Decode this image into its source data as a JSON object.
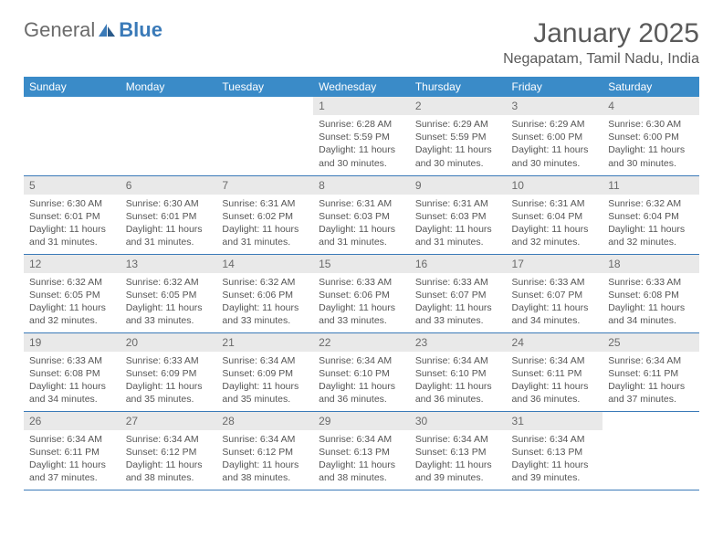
{
  "logo": {
    "general": "General",
    "blue": "Blue"
  },
  "title": "January 2025",
  "location": "Negapatam, Tamil Nadu, India",
  "colors": {
    "header_bg": "#3a8bc8",
    "border": "#3a7ab8",
    "daynum_bg": "#e9e9e9",
    "text": "#555555"
  },
  "day_names": [
    "Sunday",
    "Monday",
    "Tuesday",
    "Wednesday",
    "Thursday",
    "Friday",
    "Saturday"
  ],
  "weeks": [
    [
      {
        "n": "",
        "sr": "",
        "ss": "",
        "dl": ""
      },
      {
        "n": "",
        "sr": "",
        "ss": "",
        "dl": ""
      },
      {
        "n": "",
        "sr": "",
        "ss": "",
        "dl": ""
      },
      {
        "n": "1",
        "sr": "Sunrise: 6:28 AM",
        "ss": "Sunset: 5:59 PM",
        "dl": "Daylight: 11 hours and 30 minutes."
      },
      {
        "n": "2",
        "sr": "Sunrise: 6:29 AM",
        "ss": "Sunset: 5:59 PM",
        "dl": "Daylight: 11 hours and 30 minutes."
      },
      {
        "n": "3",
        "sr": "Sunrise: 6:29 AM",
        "ss": "Sunset: 6:00 PM",
        "dl": "Daylight: 11 hours and 30 minutes."
      },
      {
        "n": "4",
        "sr": "Sunrise: 6:30 AM",
        "ss": "Sunset: 6:00 PM",
        "dl": "Daylight: 11 hours and 30 minutes."
      }
    ],
    [
      {
        "n": "5",
        "sr": "Sunrise: 6:30 AM",
        "ss": "Sunset: 6:01 PM",
        "dl": "Daylight: 11 hours and 31 minutes."
      },
      {
        "n": "6",
        "sr": "Sunrise: 6:30 AM",
        "ss": "Sunset: 6:01 PM",
        "dl": "Daylight: 11 hours and 31 minutes."
      },
      {
        "n": "7",
        "sr": "Sunrise: 6:31 AM",
        "ss": "Sunset: 6:02 PM",
        "dl": "Daylight: 11 hours and 31 minutes."
      },
      {
        "n": "8",
        "sr": "Sunrise: 6:31 AM",
        "ss": "Sunset: 6:03 PM",
        "dl": "Daylight: 11 hours and 31 minutes."
      },
      {
        "n": "9",
        "sr": "Sunrise: 6:31 AM",
        "ss": "Sunset: 6:03 PM",
        "dl": "Daylight: 11 hours and 31 minutes."
      },
      {
        "n": "10",
        "sr": "Sunrise: 6:31 AM",
        "ss": "Sunset: 6:04 PM",
        "dl": "Daylight: 11 hours and 32 minutes."
      },
      {
        "n": "11",
        "sr": "Sunrise: 6:32 AM",
        "ss": "Sunset: 6:04 PM",
        "dl": "Daylight: 11 hours and 32 minutes."
      }
    ],
    [
      {
        "n": "12",
        "sr": "Sunrise: 6:32 AM",
        "ss": "Sunset: 6:05 PM",
        "dl": "Daylight: 11 hours and 32 minutes."
      },
      {
        "n": "13",
        "sr": "Sunrise: 6:32 AM",
        "ss": "Sunset: 6:05 PM",
        "dl": "Daylight: 11 hours and 33 minutes."
      },
      {
        "n": "14",
        "sr": "Sunrise: 6:32 AM",
        "ss": "Sunset: 6:06 PM",
        "dl": "Daylight: 11 hours and 33 minutes."
      },
      {
        "n": "15",
        "sr": "Sunrise: 6:33 AM",
        "ss": "Sunset: 6:06 PM",
        "dl": "Daylight: 11 hours and 33 minutes."
      },
      {
        "n": "16",
        "sr": "Sunrise: 6:33 AM",
        "ss": "Sunset: 6:07 PM",
        "dl": "Daylight: 11 hours and 33 minutes."
      },
      {
        "n": "17",
        "sr": "Sunrise: 6:33 AM",
        "ss": "Sunset: 6:07 PM",
        "dl": "Daylight: 11 hours and 34 minutes."
      },
      {
        "n": "18",
        "sr": "Sunrise: 6:33 AM",
        "ss": "Sunset: 6:08 PM",
        "dl": "Daylight: 11 hours and 34 minutes."
      }
    ],
    [
      {
        "n": "19",
        "sr": "Sunrise: 6:33 AM",
        "ss": "Sunset: 6:08 PM",
        "dl": "Daylight: 11 hours and 34 minutes."
      },
      {
        "n": "20",
        "sr": "Sunrise: 6:33 AM",
        "ss": "Sunset: 6:09 PM",
        "dl": "Daylight: 11 hours and 35 minutes."
      },
      {
        "n": "21",
        "sr": "Sunrise: 6:34 AM",
        "ss": "Sunset: 6:09 PM",
        "dl": "Daylight: 11 hours and 35 minutes."
      },
      {
        "n": "22",
        "sr": "Sunrise: 6:34 AM",
        "ss": "Sunset: 6:10 PM",
        "dl": "Daylight: 11 hours and 36 minutes."
      },
      {
        "n": "23",
        "sr": "Sunrise: 6:34 AM",
        "ss": "Sunset: 6:10 PM",
        "dl": "Daylight: 11 hours and 36 minutes."
      },
      {
        "n": "24",
        "sr": "Sunrise: 6:34 AM",
        "ss": "Sunset: 6:11 PM",
        "dl": "Daylight: 11 hours and 36 minutes."
      },
      {
        "n": "25",
        "sr": "Sunrise: 6:34 AM",
        "ss": "Sunset: 6:11 PM",
        "dl": "Daylight: 11 hours and 37 minutes."
      }
    ],
    [
      {
        "n": "26",
        "sr": "Sunrise: 6:34 AM",
        "ss": "Sunset: 6:11 PM",
        "dl": "Daylight: 11 hours and 37 minutes."
      },
      {
        "n": "27",
        "sr": "Sunrise: 6:34 AM",
        "ss": "Sunset: 6:12 PM",
        "dl": "Daylight: 11 hours and 38 minutes."
      },
      {
        "n": "28",
        "sr": "Sunrise: 6:34 AM",
        "ss": "Sunset: 6:12 PM",
        "dl": "Daylight: 11 hours and 38 minutes."
      },
      {
        "n": "29",
        "sr": "Sunrise: 6:34 AM",
        "ss": "Sunset: 6:13 PM",
        "dl": "Daylight: 11 hours and 38 minutes."
      },
      {
        "n": "30",
        "sr": "Sunrise: 6:34 AM",
        "ss": "Sunset: 6:13 PM",
        "dl": "Daylight: 11 hours and 39 minutes."
      },
      {
        "n": "31",
        "sr": "Sunrise: 6:34 AM",
        "ss": "Sunset: 6:13 PM",
        "dl": "Daylight: 11 hours and 39 minutes."
      },
      {
        "n": "",
        "sr": "",
        "ss": "",
        "dl": ""
      }
    ]
  ]
}
